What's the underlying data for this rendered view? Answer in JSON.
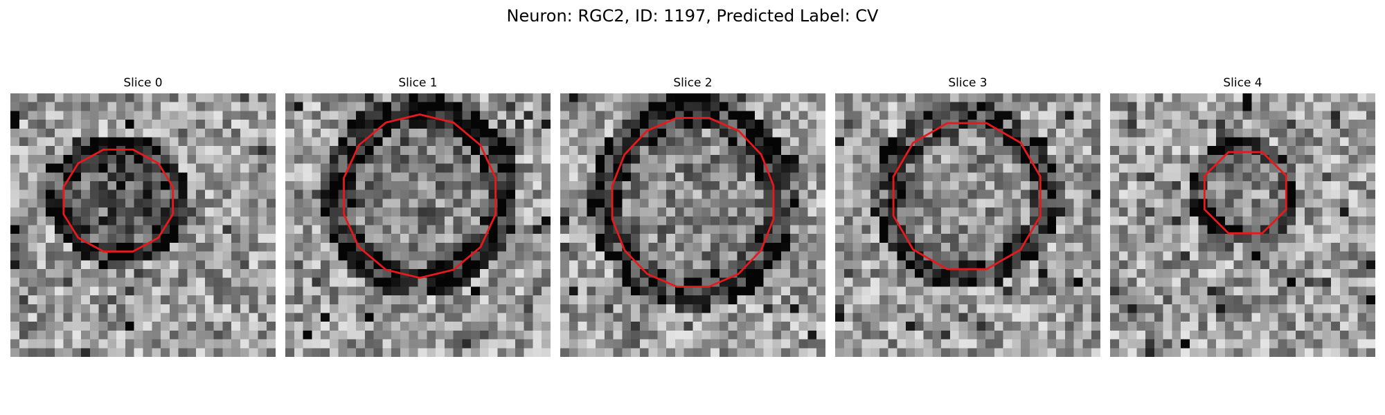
{
  "figure": {
    "title": "Neuron: RGC2, ID: 1197, Predicted Label: CV",
    "contour_color": "#e8191c"
  },
  "panels": [
    {
      "title": "Slice 0",
      "seed": 11,
      "ring_dark": 0.62,
      "inner_dark": 0.28
    },
    {
      "title": "Slice 1",
      "seed": 23,
      "ring_dark": 0.58,
      "inner_dark": 0.12
    },
    {
      "title": "Slice 2",
      "seed": 37,
      "ring_dark": 0.55,
      "inner_dark": 0.1
    },
    {
      "title": "Slice 3",
      "seed": 53,
      "ring_dark": 0.45,
      "inner_dark": 0.08
    },
    {
      "title": "Slice 4",
      "seed": 71,
      "ring_dark": 0.5,
      "inner_dark": 0.1
    }
  ]
}
